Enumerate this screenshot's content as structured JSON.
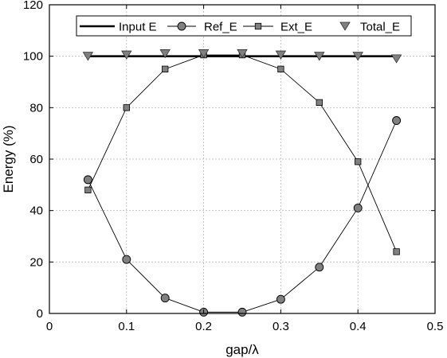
{
  "chart_data": {
    "type": "line",
    "xlabel": "gap/λ",
    "ylabel": "Energy (%)",
    "xlim": [
      0,
      0.5
    ],
    "ylim": [
      0,
      120
    ],
    "xticks": [
      "0",
      "0.1",
      "0.2",
      "0.3",
      "0.4",
      "0.5"
    ],
    "yticks": [
      "0",
      "20",
      "40",
      "60",
      "80",
      "100",
      "120"
    ],
    "grid": true,
    "legend_position": "top",
    "series": [
      {
        "name": "Input E",
        "marker": "none",
        "color": "#000000",
        "x": [
          0.05,
          0.45
        ],
        "y": [
          100,
          100
        ]
      },
      {
        "name": "Ref_E",
        "marker": "circle",
        "color": "#000000",
        "marker_fill": "#808080",
        "x": [
          0.05,
          0.1,
          0.15,
          0.2,
          0.25,
          0.3,
          0.35,
          0.4,
          0.45
        ],
        "y": [
          52,
          21,
          6,
          0.5,
          0.5,
          5.5,
          18,
          41,
          75
        ]
      },
      {
        "name": "Ext_E",
        "marker": "square",
        "color": "#000000",
        "marker_fill": "#808080",
        "x": [
          0.05,
          0.1,
          0.15,
          0.2,
          0.25,
          0.3,
          0.35,
          0.4,
          0.45
        ],
        "y": [
          48,
          80,
          95,
          100.5,
          100.5,
          95,
          82,
          59,
          24
        ]
      },
      {
        "name": "Total_E",
        "marker": "triangle-down",
        "color": "#808080",
        "marker_fill": "#808080",
        "x": [
          0.05,
          0.1,
          0.15,
          0.2,
          0.25,
          0.3,
          0.35,
          0.4,
          0.45
        ],
        "y": [
          100,
          100.5,
          101,
          101,
          101,
          100.5,
          100,
          100,
          99
        ]
      }
    ]
  }
}
